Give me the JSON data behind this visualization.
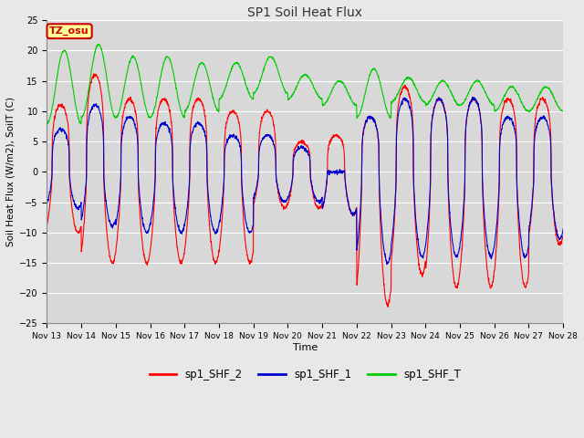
{
  "title": "SP1 Soil Heat Flux",
  "xlabel": "Time",
  "ylabel": "Soil Heat Flux (W/m2), SoilT (C)",
  "ylim": [
    -25,
    25
  ],
  "yticks": [
    -25,
    -20,
    -15,
    -10,
    -5,
    0,
    5,
    10,
    15,
    20,
    25
  ],
  "xtick_labels": [
    "Nov 13",
    "Nov 14",
    "Nov 15",
    "Nov 16",
    "Nov 17",
    "Nov 18",
    "Nov 19",
    "Nov 20",
    "Nov 21",
    "Nov 22",
    "Nov 23",
    "Nov 24",
    "Nov 25",
    "Nov 26",
    "Nov 27",
    "Nov 28"
  ],
  "legend_labels": [
    "sp1_SHF_2",
    "sp1_SHF_1",
    "sp1_SHF_T"
  ],
  "legend_colors": [
    "#ff0000",
    "#0000cc",
    "#00cc00"
  ],
  "fig_facecolor": "#e8e8e8",
  "ax_facecolor": "#d8d8d8",
  "grid_color": "#ffffff",
  "annotation_text": "TZ_osu",
  "annotation_bg": "#ffff99",
  "annotation_border": "#cc0000",
  "figsize": [
    6.4,
    4.8
  ],
  "dpi": 100
}
